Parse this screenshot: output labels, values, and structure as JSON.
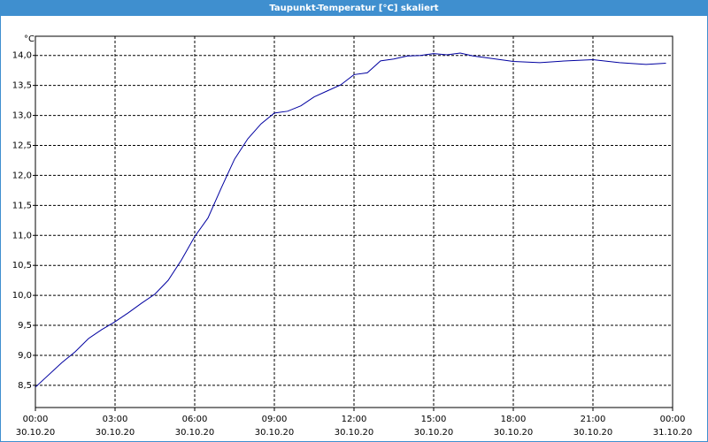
{
  "chart_data": {
    "type": "line",
    "title": "Taupunkt-Temperatur [°C] skaliert",
    "y_unit": "°C",
    "x": [
      0,
      1,
      1.5,
      2,
      2.5,
      3,
      3.5,
      4,
      4.5,
      5,
      5.5,
      6,
      6.5,
      7,
      7.5,
      8,
      8.5,
      9,
      9.5,
      10,
      10.5,
      11,
      11.5,
      12,
      12.5,
      13,
      13.5,
      14,
      14.5,
      15,
      15.5,
      16,
      16.5,
      17,
      18,
      19,
      20,
      21,
      22,
      23,
      23.75
    ],
    "series": [
      {
        "color": "#0000a0",
        "values": [
          8.47,
          8.88,
          9.06,
          9.28,
          9.43,
          9.56,
          9.71,
          9.87,
          10.02,
          10.25,
          10.59,
          10.98,
          11.29,
          11.79,
          12.27,
          12.61,
          12.86,
          13.04,
          13.07,
          13.16,
          13.31,
          13.41,
          13.51,
          13.68,
          13.71,
          13.91,
          13.94,
          13.99,
          14.0,
          14.03,
          14.01,
          14.04,
          13.99,
          13.96,
          13.9,
          13.88,
          13.91,
          13.93,
          13.88,
          13.85,
          13.87
        ]
      }
    ],
    "xlim": [
      0,
      24
    ],
    "xticks": [
      {
        "value": 0,
        "label": "00:00",
        "date": "30.10.20"
      },
      {
        "value": 3,
        "label": "03:00",
        "date": "30.10.20"
      },
      {
        "value": 6,
        "label": "06:00",
        "date": "30.10.20"
      },
      {
        "value": 9,
        "label": "09:00",
        "date": "30.10.20"
      },
      {
        "value": 12,
        "label": "12:00",
        "date": "30.10.20"
      },
      {
        "value": 15,
        "label": "15:00",
        "date": "30.10.20"
      },
      {
        "value": 18,
        "label": "18:00",
        "date": "30.10.20"
      },
      {
        "value": 21,
        "label": "21:00",
        "date": "30.10.20"
      },
      {
        "value": 24,
        "label": "00:00",
        "date": "31.10.20"
      }
    ],
    "ylim": [
      8.13,
      14.32
    ],
    "yticks": [
      {
        "value": 8.5,
        "label": "8,5"
      },
      {
        "value": 9,
        "label": "9,0"
      },
      {
        "value": 9.5,
        "label": "9,5"
      },
      {
        "value": 10,
        "label": "10,0"
      },
      {
        "value": 10.5,
        "label": "10,5"
      },
      {
        "value": 11,
        "label": "11,0"
      },
      {
        "value": 11.5,
        "label": "11,5"
      },
      {
        "value": 12,
        "label": "12,0"
      },
      {
        "value": 12.5,
        "label": "12,5"
      },
      {
        "value": 13,
        "label": "13,0"
      },
      {
        "value": 13.5,
        "label": "13,5"
      },
      {
        "value": 14,
        "label": "14,0"
      }
    ],
    "grid": true
  }
}
